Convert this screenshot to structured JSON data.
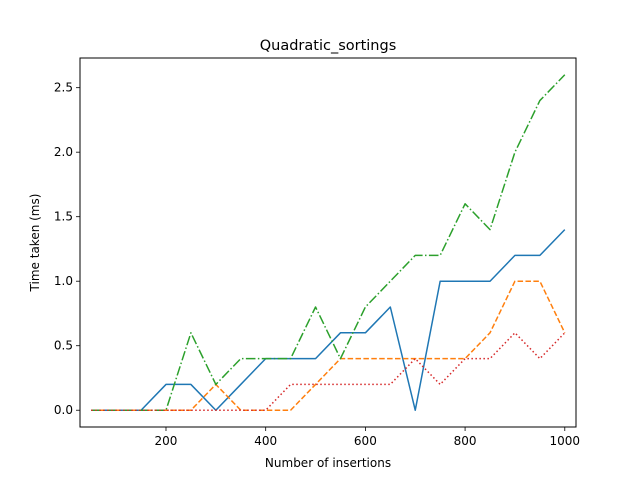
{
  "chart_data": {
    "type": "line",
    "title": "Quadratic_sortings",
    "xlabel": "Number of insertions",
    "ylabel": "Time taken (ms)",
    "xlim": [
      27.5,
      1022.5
    ],
    "ylim": [
      -0.13,
      2.73
    ],
    "xticks": [
      200,
      400,
      600,
      800,
      1000
    ],
    "yticks": [
      0.0,
      0.5,
      1.0,
      1.5,
      2.0,
      2.5
    ],
    "xtick_labels": [
      "200",
      "400",
      "600",
      "800",
      "1000"
    ],
    "ytick_labels": [
      "0.0",
      "0.5",
      "1.0",
      "1.5",
      "2.0",
      "2.5"
    ],
    "grid": false,
    "x": [
      50,
      100,
      150,
      200,
      250,
      300,
      350,
      400,
      450,
      500,
      550,
      600,
      650,
      700,
      750,
      800,
      850,
      900,
      950,
      1000
    ],
    "series": [
      {
        "color": "#1f77b4",
        "dash": "solid",
        "values": [
          0,
          0,
          0,
          0.2,
          0.2,
          0,
          0.2,
          0.4,
          0.4,
          0.4,
          0.6,
          0.6,
          0.8,
          0,
          1.0,
          1.0,
          1.0,
          1.2,
          1.2,
          1.4
        ]
      },
      {
        "color": "#ff7f0e",
        "dash": "dashed",
        "values": [
          0,
          0,
          0,
          0,
          0,
          0.2,
          0,
          0,
          0,
          0.2,
          0.4,
          0.4,
          0.4,
          0.4,
          0.4,
          0.4,
          0.6,
          1.0,
          1.0,
          0.6
        ]
      },
      {
        "color": "#2ca02c",
        "dash": "dashdot",
        "values": [
          0,
          0,
          0,
          0,
          0.6,
          0.2,
          0.4,
          0.4,
          0.4,
          0.8,
          0.4,
          0.8,
          1.0,
          1.2,
          1.2,
          1.6,
          1.4,
          2.0,
          2.4,
          2.6
        ]
      },
      {
        "color": "#d62728",
        "dash": "dotted",
        "values": [
          0,
          0,
          0,
          0,
          0,
          0,
          0,
          0,
          0.2,
          0.2,
          0.2,
          0.2,
          0.2,
          0.4,
          0.2,
          0.4,
          0.4,
          0.6,
          0.4,
          0.6
        ]
      }
    ]
  }
}
